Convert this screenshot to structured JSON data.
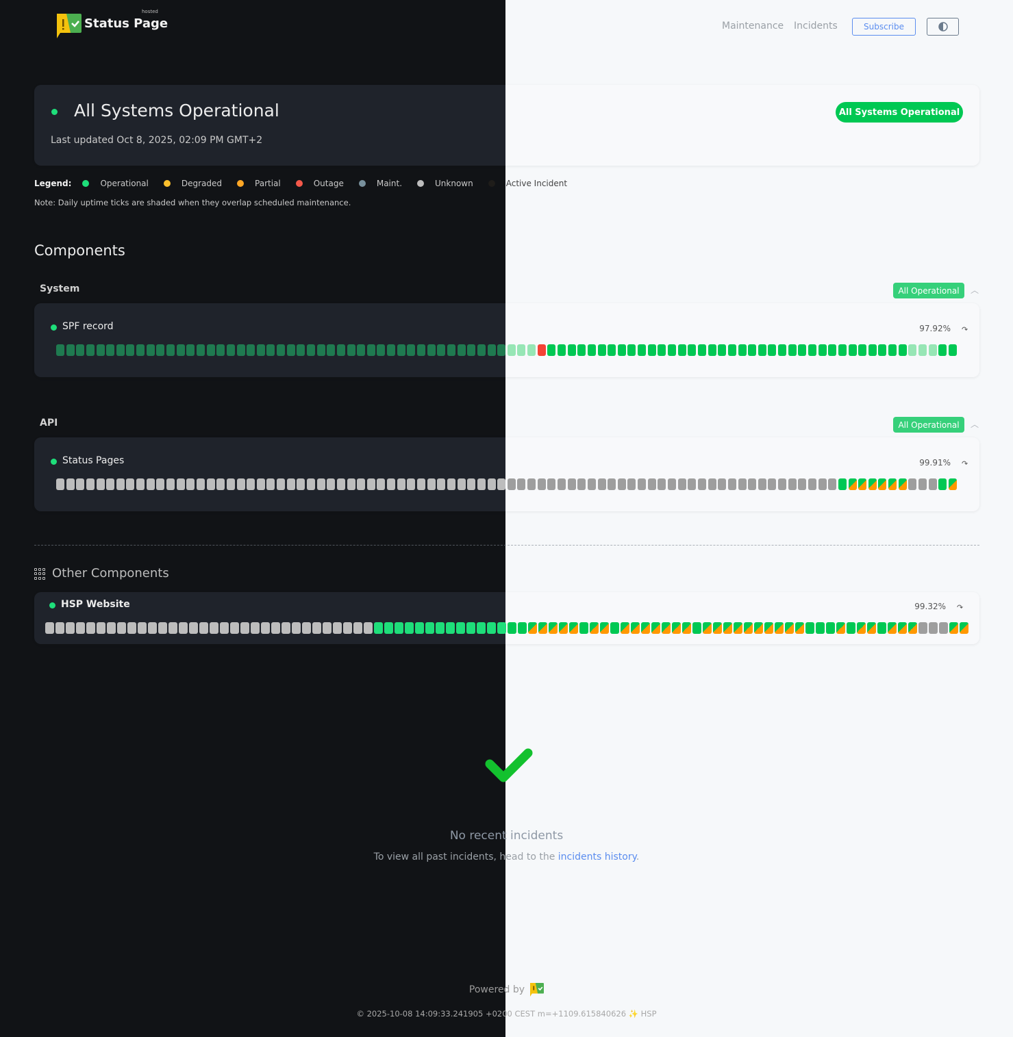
{
  "brand": {
    "name": "Status Page",
    "tag": "hosted"
  },
  "nav": {
    "maintenance": "Maintenance",
    "incidents": "Incidents",
    "subscribe": "Subscribe",
    "theme_icon": "half-circle-icon"
  },
  "status": {
    "title": "All Systems Operational",
    "updated": "Last updated Oct 8, 2025, 02:09 PM GMT+2",
    "pill": "All Systems Operational"
  },
  "legend": {
    "label": "Legend:",
    "items": [
      {
        "label": "Operational",
        "color": "#1ede7a"
      },
      {
        "label": "Degraded",
        "color": "#fbc02d"
      },
      {
        "label": "Partial",
        "color": "#ffa726"
      },
      {
        "label": "Outage",
        "color": "#f4584a"
      },
      {
        "label": "Maint.",
        "color": "#78909c"
      },
      {
        "label": "Unknown",
        "color": "#bdbdbd"
      },
      {
        "label": "Active Incident",
        "color": "#1f1d1a"
      }
    ],
    "note": "Note: Daily uptime ticks are shaded when they overlap scheduled maintenance."
  },
  "components_title": "Components",
  "groups": [
    {
      "name": "System",
      "badge": "All Operational",
      "component": {
        "name": "SPF record",
        "uptime": "97.92%",
        "ticks": "45xop,3xfaded,1xout,36xop,3xfaded,2xop"
      }
    },
    {
      "name": "API",
      "badge": "All Operational",
      "component": {
        "name": "Status Pages",
        "uptime": "99.91%",
        "ticks": "78xunk,1xop,6xpart,3xunk,1xop,1xpart"
      }
    }
  ],
  "other": {
    "title": "Other Components",
    "component": {
      "name": "HSP Website",
      "uptime": "99.32%",
      "ticks": "32xunk,15xop,5xpart,1xop,2xpart,1xop,7xpart,1xop,10xpart,3xop,1xpart,1xop,2xpart,1xop,3xpart,3xunk,2xpart"
    }
  },
  "incidents": {
    "title": "No recent incidents",
    "sub_before": "To view all past incidents, head to the ",
    "link": "incidents history",
    "sub_after": "."
  },
  "footer": {
    "powered": "Powered by",
    "stamp": "© 2025-10-08 14:09:33.241905 +0200 CEST m=+1109.615840626 ✨ HSP"
  },
  "colors": {
    "operational": "#00c853",
    "outage": "#f44336",
    "partial": "#ff9800",
    "unknown": "#9e9e9e",
    "link": "#5b8def"
  }
}
